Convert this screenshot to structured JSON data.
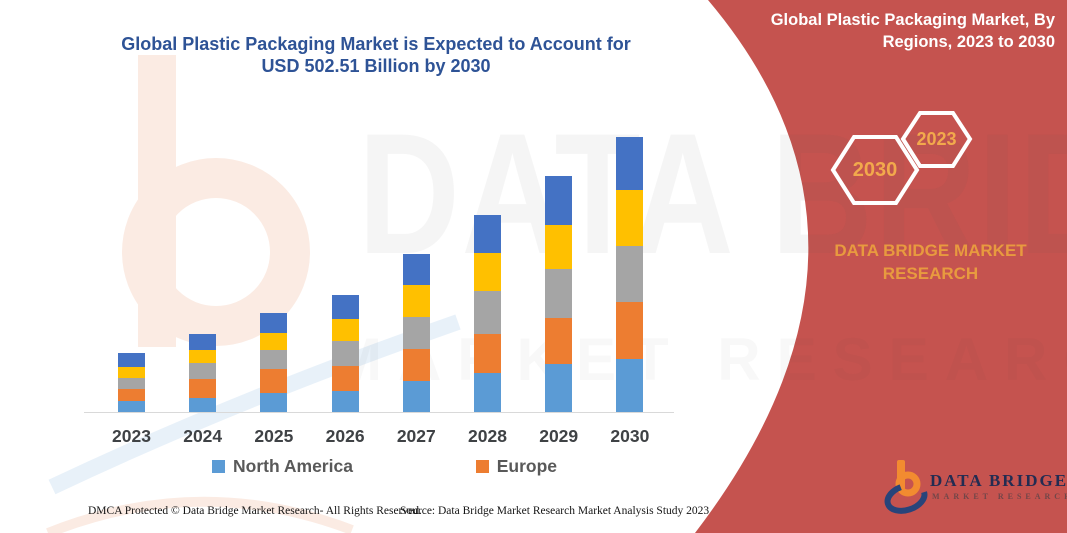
{
  "left_title": "Global Plastic Packaging Market is Expected to Account for USD 502.51 Billion by 2030",
  "right_panel": {
    "title": "Global Plastic Packaging Market, By Regions, 2023 to 2030",
    "hexagons": [
      {
        "label": "2030"
      },
      {
        "label": "2023"
      }
    ],
    "brand_line1": "DATA BRIDGE MARKET",
    "brand_line2": "RESEARCH",
    "logo": {
      "name": "DATA BRIDGE",
      "subtitle": "MARKET RESEARCH"
    }
  },
  "watermark": {
    "line1": "DATA BRIDGE",
    "line2": "MARKET RESEARCH"
  },
  "footer": {
    "left": "DMCA Protected © Data Bridge Market Research-  All Rights Reserved.",
    "right": "Source: Data Bridge Market Research  Market Analysis Study 2023"
  },
  "colors": {
    "red_panel": "#C5534F",
    "title_blue": "#2E5396",
    "hexagon_text": "#F2A94C",
    "brand_orange": "#E89A3F",
    "axis_label": "#3F4245",
    "legend_text": "#595959",
    "axis_line": "#D9D9D9"
  },
  "chart_data": {
    "type": "bar",
    "stacked": true,
    "title": "Global Plastic Packaging Market, By Regions, 2023 to 2030",
    "xlabel": "",
    "ylabel": "",
    "units": "USD billion (estimated; 2030 total = 502.51 per title)",
    "grid": false,
    "legend_position": "bottom",
    "categories": [
      "2023",
      "2024",
      "2025",
      "2026",
      "2027",
      "2028",
      "2029",
      "2030"
    ],
    "series": [
      {
        "name": "North America",
        "color": "#5B9BD5",
        "values": [
          20.1,
          26.3,
          35.4,
          38.3,
          56.6,
          71.9,
          87.0,
          97.4
        ]
      },
      {
        "name": "Europe",
        "color": "#ED7D31",
        "values": [
          22.6,
          34.7,
          43.8,
          45.6,
          57.8,
          69.9,
          85.2,
          103.3
        ]
      },
      {
        "name": "",
        "color": "#A5A5A5",
        "values": [
          19.3,
          27.9,
          33.4,
          45.6,
          59.7,
          79.0,
          88.3,
          103.5
        ]
      },
      {
        "name": "",
        "color": "#FFC000",
        "values": [
          20.1,
          23.7,
          32.3,
          39.6,
          58.9,
          70.1,
          82.1,
          100.9
        ]
      },
      {
        "name": "",
        "color": "#4472C4",
        "values": [
          25.0,
          29.2,
          35.2,
          45.6,
          56.6,
          68.6,
          89.4,
          97.4
        ]
      }
    ],
    "totals": [
      107.1,
      141.8,
      180.1,
      214.7,
      289.6,
      359.5,
      432.0,
      502.5
    ],
    "legend": [
      {
        "label": "North America",
        "color": "#5B9BD5"
      },
      {
        "label": "Europe",
        "color": "#ED7D31"
      }
    ]
  }
}
